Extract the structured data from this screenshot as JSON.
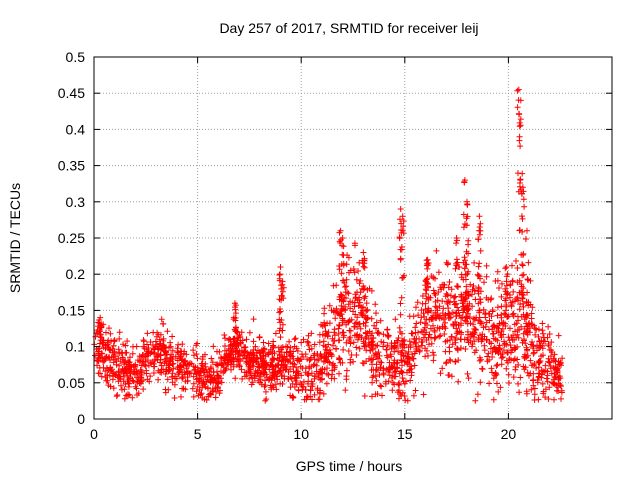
{
  "chart_data": {
    "type": "scatter",
    "title": "Day 257 of 2017, SRMTID for receiver leij",
    "xlabel": "GPS time / hours",
    "ylabel": "SRMTID / TECUs",
    "xlim": [
      0,
      25
    ],
    "ylim": [
      0,
      0.5
    ],
    "x_ticks": [
      0,
      5,
      10,
      15,
      20
    ],
    "x_tick_labels": [
      "0",
      "5",
      "10",
      "15",
      "20"
    ],
    "y_ticks": [
      0,
      0.05,
      0.1,
      0.15,
      0.2,
      0.25,
      0.3,
      0.35,
      0.4,
      0.45,
      0.5
    ],
    "y_tick_labels": [
      "0",
      "0.05",
      "0.1",
      "0.15",
      "0.2",
      "0.25",
      "0.3",
      "0.35",
      "0.4",
      "0.45",
      "0.5"
    ],
    "grid": true,
    "marker": "+",
    "color": "#ff0000",
    "trend": {
      "x": [
        0,
        0.3,
        0.5,
        1,
        1.5,
        2,
        2.5,
        3,
        3.5,
        4,
        4.5,
        5,
        5.5,
        6,
        6.5,
        7,
        7.5,
        8,
        8.5,
        9,
        9.5,
        10,
        10.5,
        11,
        11.5,
        12,
        12.5,
        13,
        13.5,
        14,
        14.5,
        15,
        15.5,
        16,
        16.5,
        17,
        17.5,
        18,
        18.5,
        19,
        19.5,
        20,
        20.5,
        21,
        21.5,
        22,
        22.6
      ],
      "y": [
        0.08,
        0.1,
        0.09,
        0.075,
        0.065,
        0.06,
        0.085,
        0.09,
        0.085,
        0.075,
        0.07,
        0.065,
        0.055,
        0.06,
        0.09,
        0.1,
        0.08,
        0.075,
        0.075,
        0.08,
        0.075,
        0.07,
        0.065,
        0.085,
        0.11,
        0.14,
        0.15,
        0.13,
        0.09,
        0.08,
        0.085,
        0.07,
        0.11,
        0.14,
        0.15,
        0.14,
        0.13,
        0.15,
        0.14,
        0.12,
        0.11,
        0.12,
        0.13,
        0.11,
        0.085,
        0.07,
        0.06
      ]
    },
    "spread": {
      "x": [
        0,
        5,
        9,
        11.5,
        12.5,
        14,
        16,
        18,
        20,
        21,
        22.6
      ],
      "y": [
        0.025,
        0.02,
        0.02,
        0.035,
        0.05,
        0.025,
        0.04,
        0.045,
        0.045,
        0.04,
        0.02
      ]
    },
    "spikes": [
      {
        "x": 0.3,
        "y_max": 0.14
      },
      {
        "x": 6.8,
        "y_max": 0.16
      },
      {
        "x": 9.0,
        "y_max": 0.21
      },
      {
        "x": 9.1,
        "y_max": 0.19
      },
      {
        "x": 11.9,
        "y_max": 0.26
      },
      {
        "x": 12.0,
        "y_max": 0.25
      },
      {
        "x": 13.0,
        "y_max": 0.23
      },
      {
        "x": 14.8,
        "y_max": 0.29
      },
      {
        "x": 14.9,
        "y_max": 0.28
      },
      {
        "x": 16.1,
        "y_max": 0.22
      },
      {
        "x": 17.5,
        "y_max": 0.25
      },
      {
        "x": 17.9,
        "y_max": 0.33
      },
      {
        "x": 18.0,
        "y_max": 0.3
      },
      {
        "x": 18.6,
        "y_max": 0.28
      },
      {
        "x": 19.9,
        "y_max": 0.21
      },
      {
        "x": 20.5,
        "y_max": 0.455
      },
      {
        "x": 20.6,
        "y_max": 0.44
      },
      {
        "x": 20.7,
        "y_max": 0.32
      },
      {
        "x": 20.9,
        "y_max": 0.26
      }
    ],
    "n_points": 2200,
    "x_range": [
      0,
      22.6
    ]
  }
}
